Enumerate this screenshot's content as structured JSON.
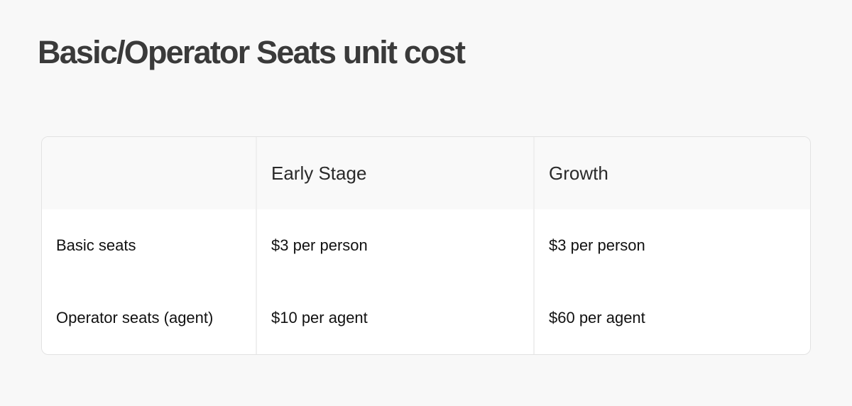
{
  "title": "Basic/Operator Seats unit cost",
  "table": {
    "headers": [
      "",
      "Early Stage",
      "Growth"
    ],
    "rows": [
      [
        "Basic seats",
        "$3 per person",
        "$3 per person"
      ],
      [
        "Operator seats (agent)",
        "$10 per agent",
        "$60 per agent"
      ]
    ]
  }
}
